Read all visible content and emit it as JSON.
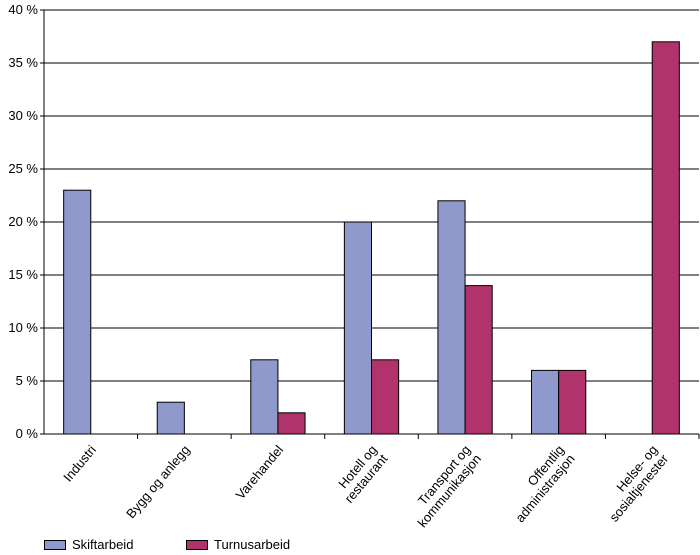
{
  "chart_data": {
    "type": "bar",
    "categories": [
      "Industri",
      "Bygg og anlegg",
      "Varehandel",
      "Hotell og\nrestaurant",
      "Transport og\nkommunikasjon",
      "Offentlig\nadministrasjon",
      "Helse- og\nsosialtjenester"
    ],
    "series": [
      {
        "name": "Skiftarbeid",
        "color": "#8f99cc",
        "values": [
          23,
          3,
          7,
          20,
          22,
          6,
          null
        ]
      },
      {
        "name": "Turnusarbeid",
        "color": "#b0336b",
        "values": [
          null,
          null,
          2,
          7,
          14,
          6,
          37
        ]
      }
    ],
    "y_ticks": [
      "0 %",
      "5 %",
      "10 %",
      "15 %",
      "20 %",
      "25 %",
      "30  %",
      "35 %",
      "40 %"
    ],
    "ylim": [
      0,
      40
    ],
    "grid": true,
    "legend_position": "bottom-left"
  }
}
